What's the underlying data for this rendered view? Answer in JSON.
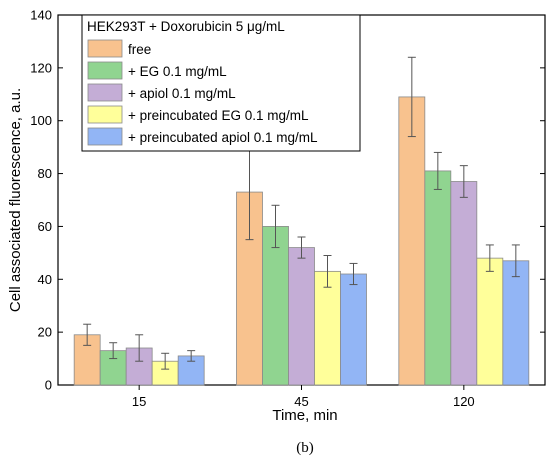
{
  "chart_data": {
    "type": "bar",
    "xlabel": "Time, min",
    "ylabel": "Cell associated fluorescence, a.u.",
    "categories": [
      "15",
      "45",
      "120"
    ],
    "ylim": [
      0,
      140
    ],
    "yticks": [
      0,
      20,
      40,
      60,
      80,
      100,
      120,
      140
    ],
    "legend_title": "HEK293T + Doxorubicin 5 μg/mL",
    "legend_position": "top-left",
    "grid": false,
    "series": [
      {
        "name": "free",
        "color": "#F8C28E",
        "values": [
          19,
          73,
          109
        ],
        "errors": [
          4,
          18,
          15
        ]
      },
      {
        "name": "+ EG 0.1 mg/mL",
        "color": "#90D490",
        "values": [
          13,
          60,
          81
        ],
        "errors": [
          3,
          8,
          7
        ]
      },
      {
        "name": "+ apiol 0.1 mg/mL",
        "color": "#C4ADD6",
        "values": [
          14,
          52,
          77
        ],
        "errors": [
          5,
          4,
          6
        ]
      },
      {
        "name": "+ preincubated EG 0.1 mg/mL",
        "color": "#FFFF9A",
        "values": [
          9,
          43,
          48
        ],
        "errors": [
          3,
          6,
          5
        ]
      },
      {
        "name": "+ preincubated apiol 0.1 mg/mL",
        "color": "#92B5F5",
        "values": [
          11,
          42,
          47
        ],
        "errors": [
          2,
          4,
          6
        ]
      }
    ]
  },
  "caption": "(b)"
}
